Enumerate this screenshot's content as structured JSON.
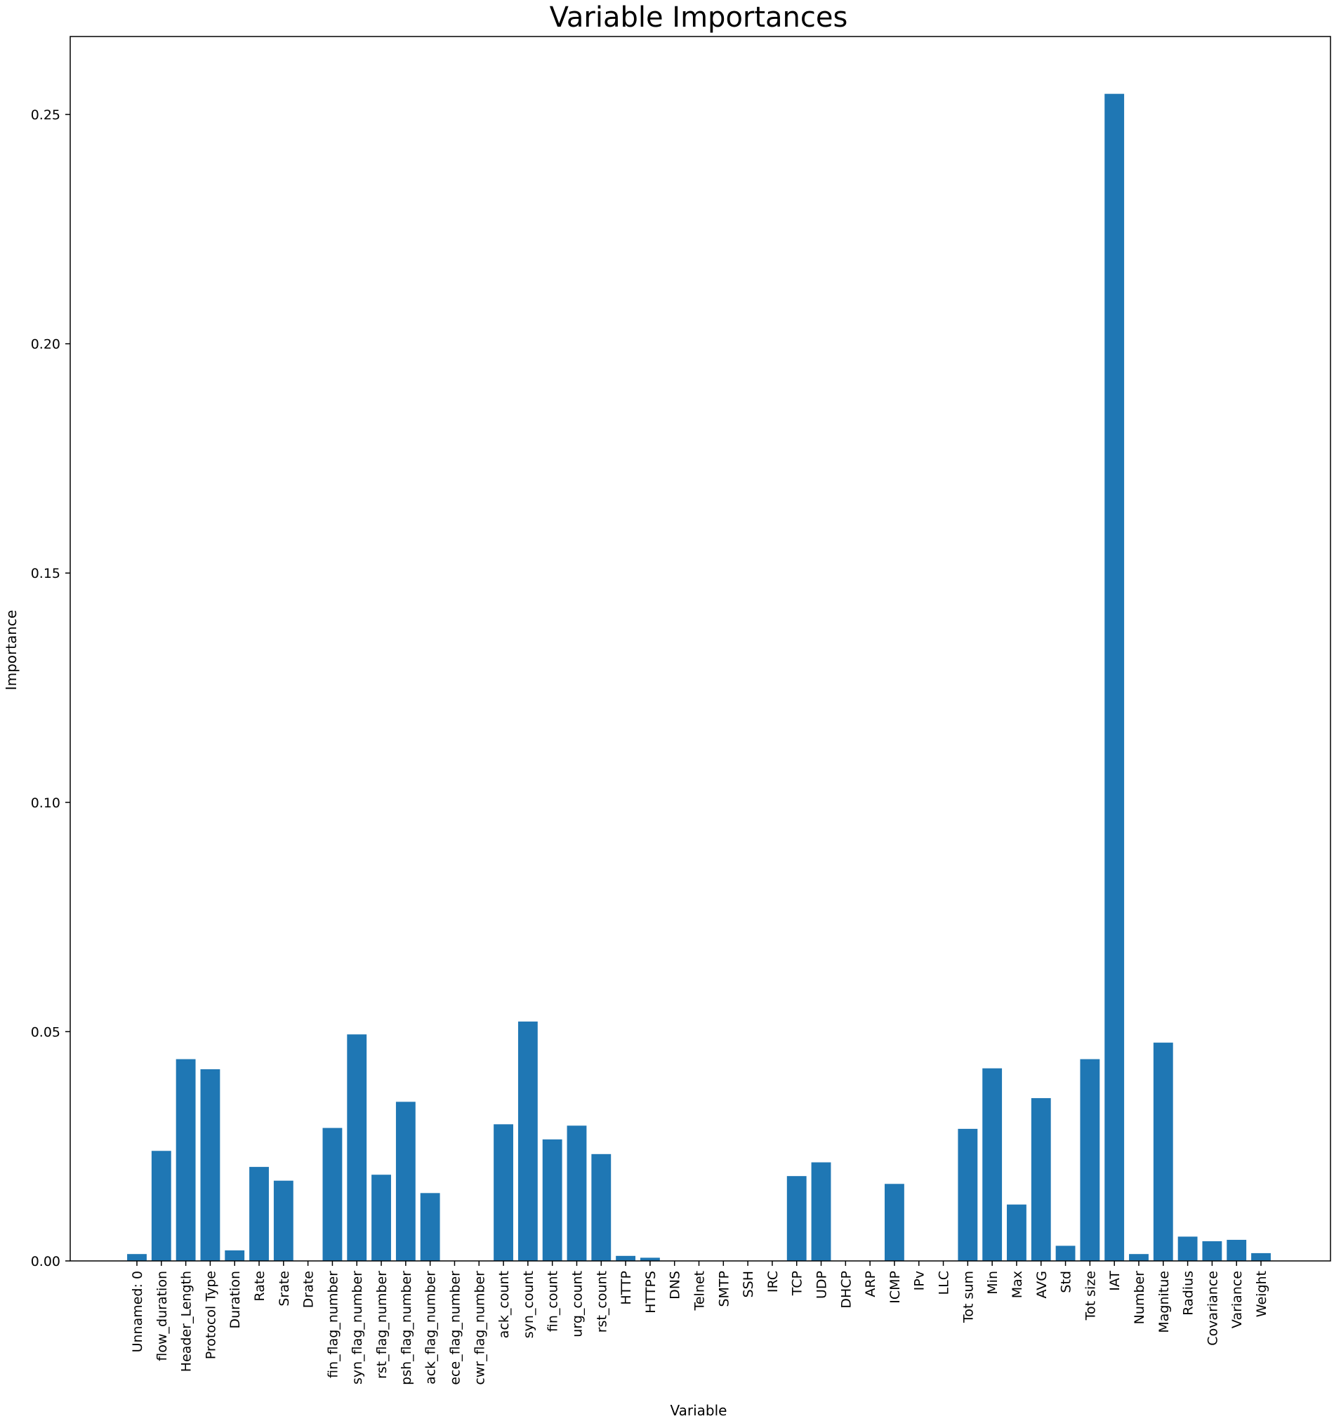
{
  "chart_data": {
    "type": "bar",
    "title": "Variable Importances",
    "xlabel": "Variable",
    "ylabel": "Importance",
    "ylim": [
      0,
      0.267
    ],
    "yticks": [
      0.0,
      0.05,
      0.1,
      0.15,
      0.2,
      0.25
    ],
    "ytick_labels": [
      "0.00",
      "0.05",
      "0.10",
      "0.15",
      "0.20",
      "0.25"
    ],
    "color": "#1f77b4",
    "grid": false,
    "categories": [
      "Unnamed: 0",
      "flow_duration",
      "Header_Length",
      "Protocol Type",
      "Duration",
      "Rate",
      "Srate",
      "Drate",
      "fin_flag_number",
      "syn_flag_number",
      "rst_flag_number",
      "psh_flag_number",
      "ack_flag_number",
      "ece_flag_number",
      "cwr_flag_number",
      "ack_count",
      "syn_count",
      "fin_count",
      "urg_count",
      "rst_count",
      "HTTP",
      "HTTPS",
      "DNS",
      "Telnet",
      "SMTP",
      "SSH",
      "IRC",
      "TCP",
      "UDP",
      "DHCP",
      "ARP",
      "ICMP",
      "IPv",
      "LLC",
      "Tot sum",
      "Min",
      "Max",
      "AVG",
      "Std",
      "Tot size",
      "IAT",
      "Number",
      "Magnitue",
      "Radius",
      "Covariance",
      "Variance",
      "Weight"
    ],
    "values": [
      0.0015,
      0.024,
      0.044,
      0.0418,
      0.0023,
      0.0205,
      0.0175,
      0.0,
      0.029,
      0.0494,
      0.0188,
      0.0347,
      0.0148,
      0.0,
      0.0,
      0.0298,
      0.0522,
      0.0265,
      0.0295,
      0.0233,
      0.0011,
      0.0007,
      0.0,
      0.0,
      0.0,
      0.0,
      0.0,
      0.0185,
      0.0215,
      0.0,
      0.0,
      0.0168,
      0.0,
      0.0,
      0.0288,
      0.042,
      0.0123,
      0.0355,
      0.0033,
      0.044,
      0.2545,
      0.0015,
      0.0476,
      0.0053,
      0.0043,
      0.0046,
      0.0017
    ]
  }
}
